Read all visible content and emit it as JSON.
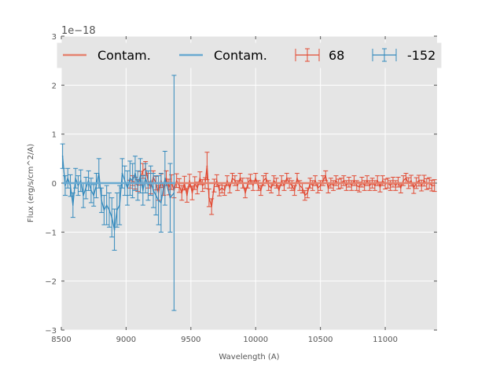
{
  "chart_data": {
    "type": "line",
    "title": "",
    "xlabel": "Wavelength (A)",
    "ylabel": "Flux (erg/s/cm^2/A)",
    "y_offset_label": "1e−18",
    "xlim": [
      8500,
      11400
    ],
    "ylim": [
      -3,
      3
    ],
    "x_ticks": [
      8500,
      9000,
      9500,
      10000,
      10500,
      11000
    ],
    "y_ticks": [
      -3,
      -2,
      -1,
      0,
      1,
      2,
      3
    ],
    "y_tick_labels": [
      "−3",
      "−2",
      "−1",
      "0",
      "1",
      "2",
      "3"
    ],
    "grid": true,
    "legend_position": "top",
    "legend": [
      {
        "label": "Contam.",
        "kind": "line",
        "color": "#E5826F"
      },
      {
        "label": "Contam.",
        "kind": "line",
        "color": "#6AAAD1"
      },
      {
        "label": "68",
        "kind": "errorbar",
        "color": "#E24A33"
      },
      {
        "label": "-152",
        "kind": "errorbar",
        "color": "#348ABD"
      }
    ],
    "colors": {
      "background": "#E5E5E5",
      "grid": "#FFFFFF",
      "series_68": "#E24A33",
      "series_-152": "#348ABD",
      "contam_68": "#E5826F",
      "contam_-152": "#6AAAD1"
    },
    "series": [
      {
        "name": "68",
        "color": "#E24A33",
        "points": [
          [
            9030,
            -0.02,
            0.08
          ],
          [
            9050,
            0.05,
            0.1
          ],
          [
            9070,
            0.0,
            0.12
          ],
          [
            9090,
            -0.05,
            0.12
          ],
          [
            9110,
            0.1,
            0.14
          ],
          [
            9130,
            0.25,
            0.15
          ],
          [
            9150,
            0.3,
            0.14
          ],
          [
            9170,
            0.05,
            0.15
          ],
          [
            9190,
            -0.1,
            0.12
          ],
          [
            9210,
            0.12,
            0.13
          ],
          [
            9230,
            0.0,
            0.14
          ],
          [
            9250,
            -0.2,
            0.15
          ],
          [
            9270,
            0.05,
            0.14
          ],
          [
            9290,
            -0.12,
            0.13
          ],
          [
            9310,
            0.1,
            0.15
          ],
          [
            9330,
            -0.08,
            0.16
          ],
          [
            9350,
            0.02,
            0.15
          ],
          [
            9370,
            -0.15,
            0.15
          ],
          [
            9390,
            0.05,
            0.14
          ],
          [
            9410,
            -0.05,
            0.14
          ],
          [
            9430,
            -0.2,
            0.15
          ],
          [
            9450,
            0.0,
            0.14
          ],
          [
            9470,
            -0.25,
            0.14
          ],
          [
            9490,
            0.05,
            0.13
          ],
          [
            9510,
            -0.2,
            0.14
          ],
          [
            9530,
            0.0,
            0.13
          ],
          [
            9550,
            -0.1,
            0.12
          ],
          [
            9570,
            0.1,
            0.13
          ],
          [
            9590,
            -0.05,
            0.12
          ],
          [
            9610,
            0.0,
            0.11
          ],
          [
            9625,
            0.35,
            0.28
          ],
          [
            9640,
            -0.3,
            0.18
          ],
          [
            9660,
            -0.48,
            0.16
          ],
          [
            9680,
            -0.05,
            0.13
          ],
          [
            9700,
            0.05,
            0.12
          ],
          [
            9720,
            -0.15,
            0.11
          ],
          [
            9740,
            -0.1,
            0.1
          ],
          [
            9760,
            -0.15,
            0.1
          ],
          [
            9780,
            0.05,
            0.1
          ],
          [
            9800,
            -0.1,
            0.1
          ],
          [
            9820,
            0.1,
            0.1
          ],
          [
            9840,
            0.05,
            0.1
          ],
          [
            9860,
            -0.05,
            0.1
          ],
          [
            9880,
            0.1,
            0.1
          ],
          [
            9900,
            0.0,
            0.1
          ],
          [
            9920,
            -0.2,
            0.1
          ],
          [
            9940,
            0.0,
            0.1
          ],
          [
            9960,
            0.08,
            0.1
          ],
          [
            9980,
            -0.05,
            0.1
          ],
          [
            10000,
            0.1,
            0.1
          ],
          [
            10020,
            -0.05,
            0.1
          ],
          [
            10040,
            -0.15,
            0.1
          ],
          [
            10060,
            0.05,
            0.1
          ],
          [
            10080,
            0.1,
            0.1
          ],
          [
            10100,
            -0.05,
            0.1
          ],
          [
            10120,
            -0.1,
            0.1
          ],
          [
            10140,
            0.05,
            0.1
          ],
          [
            10160,
            0.0,
            0.1
          ],
          [
            10180,
            -0.15,
            0.1
          ],
          [
            10200,
            0.05,
            0.1
          ],
          [
            10220,
            -0.05,
            0.1
          ],
          [
            10240,
            0.1,
            0.1
          ],
          [
            10260,
            0.0,
            0.1
          ],
          [
            10280,
            -0.05,
            0.1
          ],
          [
            10300,
            -0.15,
            0.1
          ],
          [
            10320,
            0.1,
            0.1
          ],
          [
            10340,
            -0.05,
            0.1
          ],
          [
            10360,
            -0.1,
            0.1
          ],
          [
            10380,
            -0.25,
            0.1
          ],
          [
            10400,
            -0.2,
            0.1
          ],
          [
            10420,
            0.0,
            0.1
          ],
          [
            10440,
            -0.05,
            0.1
          ],
          [
            10460,
            0.05,
            0.1
          ],
          [
            10480,
            -0.1,
            0.1
          ],
          [
            10500,
            -0.05,
            0.1
          ],
          [
            10520,
            0.05,
            0.1
          ],
          [
            10540,
            0.15,
            0.1
          ],
          [
            10560,
            -0.1,
            0.1
          ],
          [
            10580,
            0.0,
            0.1
          ],
          [
            10600,
            -0.05,
            0.1
          ],
          [
            10620,
            0.05,
            0.1
          ],
          [
            10640,
            -0.02,
            0.1
          ],
          [
            10660,
            0.0,
            0.1
          ],
          [
            10680,
            0.05,
            0.1
          ],
          [
            10700,
            -0.05,
            0.1
          ],
          [
            10720,
            0.02,
            0.1
          ],
          [
            10740,
            -0.05,
            0.1
          ],
          [
            10760,
            0.05,
            0.1
          ],
          [
            10780,
            -0.05,
            0.1
          ],
          [
            10800,
            -0.08,
            0.1
          ],
          [
            10820,
            0.02,
            0.1
          ],
          [
            10840,
            -0.05,
            0.1
          ],
          [
            10860,
            0.05,
            0.1
          ],
          [
            10880,
            -0.05,
            0.1
          ],
          [
            10900,
            0.0,
            0.1
          ],
          [
            10920,
            -0.05,
            0.1
          ],
          [
            10940,
            0.05,
            0.1
          ],
          [
            10960,
            -0.08,
            0.1
          ],
          [
            10980,
            0.05,
            0.1
          ],
          [
            11000,
            -0.02,
            0.1
          ],
          [
            11020,
            0.0,
            0.1
          ],
          [
            11040,
            -0.05,
            0.1
          ],
          [
            11060,
            0.02,
            0.1
          ],
          [
            11080,
            -0.05,
            0.1
          ],
          [
            11100,
            0.02,
            0.1
          ],
          [
            11120,
            -0.1,
            0.1
          ],
          [
            11140,
            0.05,
            0.1
          ],
          [
            11160,
            0.1,
            0.1
          ],
          [
            11180,
            0.0,
            0.11
          ],
          [
            11200,
            0.05,
            0.11
          ],
          [
            11220,
            -0.1,
            0.11
          ],
          [
            11240,
            0.0,
            0.11
          ],
          [
            11260,
            0.05,
            0.11
          ],
          [
            11280,
            -0.05,
            0.11
          ],
          [
            11300,
            0.05,
            0.11
          ],
          [
            11320,
            -0.02,
            0.11
          ],
          [
            11340,
            0.0,
            0.11
          ],
          [
            11360,
            -0.05,
            0.11
          ],
          [
            11380,
            -0.05,
            0.12
          ]
        ]
      },
      {
        "name": "-152",
        "color": "#348ABD",
        "points": [
          [
            8510,
            0.55,
            0.25
          ],
          [
            8530,
            -0.05,
            0.2
          ],
          [
            8550,
            0.1,
            0.2
          ],
          [
            8570,
            -0.05,
            0.22
          ],
          [
            8590,
            -0.45,
            0.25
          ],
          [
            8610,
            0.1,
            0.2
          ],
          [
            8630,
            -0.05,
            0.2
          ],
          [
            8650,
            0.05,
            0.22
          ],
          [
            8670,
            -0.25,
            0.25
          ],
          [
            8690,
            -0.1,
            0.22
          ],
          [
            8710,
            0.05,
            0.2
          ],
          [
            8730,
            -0.15,
            0.25
          ],
          [
            8750,
            -0.25,
            0.22
          ],
          [
            8770,
            -0.05,
            0.25
          ],
          [
            8790,
            0.2,
            0.3
          ],
          [
            8810,
            -0.35,
            0.25
          ],
          [
            8830,
            -0.55,
            0.3
          ],
          [
            8850,
            -0.45,
            0.4
          ],
          [
            8870,
            -0.55,
            0.35
          ],
          [
            8890,
            -0.7,
            0.4
          ],
          [
            8910,
            -0.95,
            0.42
          ],
          [
            8930,
            -0.55,
            0.35
          ],
          [
            8950,
            -0.45,
            0.4
          ],
          [
            8970,
            0.2,
            0.3
          ],
          [
            8990,
            0.05,
            0.3
          ],
          [
            9010,
            -0.1,
            0.35
          ],
          [
            9030,
            0.1,
            0.35
          ],
          [
            9050,
            0.05,
            0.35
          ],
          [
            9070,
            0.2,
            0.35
          ],
          [
            9090,
            -0.05,
            0.3
          ],
          [
            9110,
            0.15,
            0.35
          ],
          [
            9130,
            -0.15,
            0.3
          ],
          [
            9150,
            0.1,
            0.3
          ],
          [
            9170,
            -0.05,
            0.3
          ],
          [
            9190,
            0.05,
            0.3
          ],
          [
            9210,
            -0.15,
            0.35
          ],
          [
            9230,
            -0.25,
            0.4
          ],
          [
            9250,
            -0.35,
            0.5
          ],
          [
            9270,
            -0.4,
            0.6
          ],
          [
            9300,
            0.1,
            0.55
          ],
          [
            9340,
            -0.3,
            0.7
          ],
          [
            9370,
            -0.2,
            2.4
          ]
        ]
      },
      {
        "name": "Contam.",
        "color": "#E5826F",
        "points": [
          [
            9030,
            0.0
          ],
          [
            11380,
            0.0
          ]
        ]
      },
      {
        "name": "Contam.",
        "color": "#6AAAD1",
        "points": [
          [
            8510,
            0.0
          ],
          [
            9380,
            0.0
          ]
        ]
      }
    ]
  }
}
